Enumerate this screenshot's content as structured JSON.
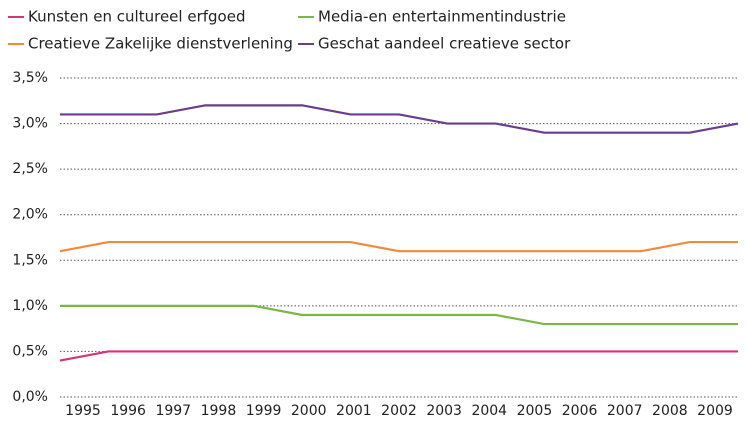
{
  "chart_data": {
    "type": "line",
    "categories": [
      "1995",
      "1996",
      "1997",
      "1998",
      "1999",
      "2000",
      "2001",
      "2002",
      "2003",
      "2004",
      "2005",
      "2006",
      "2007",
      "2008",
      "2009"
    ],
    "series": [
      {
        "name": "Kunsten en cultureel erfgoed",
        "color": "#d6347a",
        "values": [
          0.4,
          0.5,
          0.5,
          0.5,
          0.5,
          0.5,
          0.5,
          0.5,
          0.5,
          0.5,
          0.5,
          0.5,
          0.5,
          0.5,
          0.5
        ]
      },
      {
        "name": "Media-en entertainmentindustrie",
        "color": "#7ab648",
        "values": [
          1.0,
          1.0,
          1.0,
          1.0,
          1.0,
          0.9,
          0.9,
          0.9,
          0.9,
          0.9,
          0.8,
          0.8,
          0.8,
          0.8,
          0.8
        ]
      },
      {
        "name": "Creatieve Zakelijke dienstverlening",
        "color": "#f08a3c",
        "values": [
          1.6,
          1.7,
          1.7,
          1.7,
          1.7,
          1.7,
          1.7,
          1.6,
          1.6,
          1.6,
          1.6,
          1.6,
          1.6,
          1.7,
          1.7
        ]
      },
      {
        "name": "Geschat aandeel creatieve sector",
        "color": "#6a3d8a",
        "values": [
          3.1,
          3.1,
          3.1,
          3.2,
          3.2,
          3.2,
          3.1,
          3.1,
          3.0,
          3.0,
          2.9,
          2.9,
          2.9,
          2.9,
          3.0
        ]
      }
    ],
    "ylim": [
      0,
      3.5
    ],
    "yticks": [
      {
        "value": 0,
        "label": "0,0%"
      },
      {
        "value": 0.5,
        "label": "0,5%"
      },
      {
        "value": 1,
        "label": "1,0%"
      },
      {
        "value": 1.5,
        "label": "1,5%"
      },
      {
        "value": 2,
        "label": "2,0%"
      },
      {
        "value": 2.5,
        "label": "2,5%"
      },
      {
        "value": 3,
        "label": "3,0%"
      },
      {
        "value": 3.5,
        "label": "3,5%"
      }
    ],
    "grid": true,
    "legend": "top"
  }
}
